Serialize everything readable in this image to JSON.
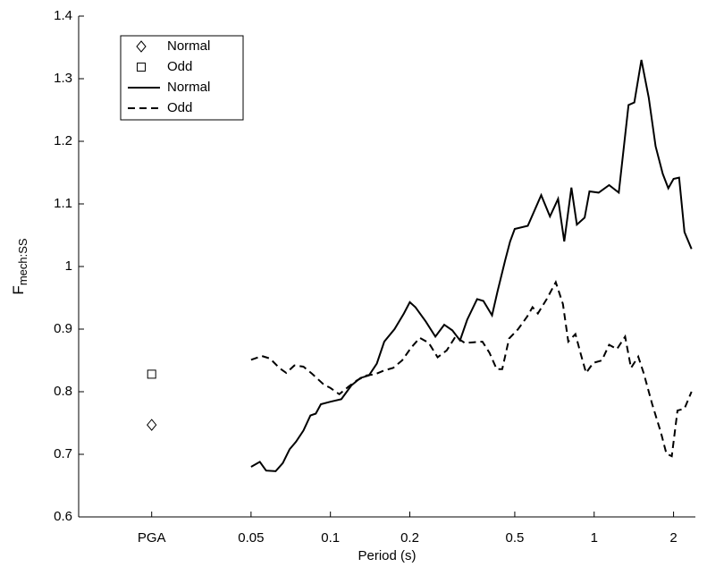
{
  "chart_data": {
    "type": "line",
    "x_label": "Period (s)",
    "y_label": "F",
    "y_label_sub": "mech:SS",
    "xscale": "log",
    "xlim": [
      0.0111,
      2.42
    ],
    "ylim": [
      0.6,
      1.4
    ],
    "xticks": [
      {
        "value": 0.021,
        "label": "PGA"
      },
      0.05,
      0.1,
      0.2,
      0.5,
      1,
      2
    ],
    "yticks": [
      0.6,
      0.7,
      0.8,
      0.9,
      1,
      1.1,
      1.2,
      1.3,
      1.4
    ],
    "legend": "top-left",
    "series": [
      {
        "name": "Normal",
        "color": "#000000",
        "style": "diamond",
        "x": [
          0.021
        ],
        "values": [
          0.747
        ]
      },
      {
        "name": "Odd",
        "color": "#000000",
        "style": "square",
        "x": [
          0.021
        ],
        "values": [
          0.828
        ]
      },
      {
        "name": "Normal",
        "color": "#000000",
        "style": "solid",
        "x": [
          0.05,
          0.054,
          0.057,
          0.062,
          0.066,
          0.07,
          0.074,
          0.079,
          0.084,
          0.088,
          0.092,
          0.1,
          0.11,
          0.12,
          0.13,
          0.14,
          0.15,
          0.16,
          0.175,
          0.19,
          0.2,
          0.21,
          0.23,
          0.25,
          0.27,
          0.29,
          0.31,
          0.33,
          0.36,
          0.38,
          0.41,
          0.43,
          0.46,
          0.48,
          0.5,
          0.56,
          0.63,
          0.68,
          0.73,
          0.77,
          0.82,
          0.86,
          0.92,
          0.96,
          1.04,
          1.14,
          1.24,
          1.35,
          1.42,
          1.51,
          1.61,
          1.71,
          1.82,
          1.91,
          2.0,
          2.1,
          2.2,
          2.34
        ],
        "values": [
          0.68,
          0.688,
          0.674,
          0.673,
          0.686,
          0.708,
          0.72,
          0.738,
          0.762,
          0.765,
          0.78,
          0.784,
          0.788,
          0.81,
          0.822,
          0.826,
          0.845,
          0.88,
          0.9,
          0.925,
          0.943,
          0.935,
          0.912,
          0.888,
          0.907,
          0.898,
          0.882,
          0.915,
          0.948,
          0.945,
          0.922,
          0.96,
          1.01,
          1.04,
          1.06,
          1.065,
          1.114,
          1.08,
          1.108,
          1.04,
          1.126,
          1.067,
          1.078,
          1.12,
          1.118,
          1.13,
          1.118,
          1.258,
          1.262,
          1.33,
          1.27,
          1.192,
          1.148,
          1.125,
          1.14,
          1.142,
          1.055,
          1.028
        ]
      },
      {
        "name": "Odd",
        "color": "#000000",
        "style": "dashed",
        "x": [
          0.05,
          0.055,
          0.059,
          0.064,
          0.068,
          0.073,
          0.079,
          0.085,
          0.094,
          0.1,
          0.108,
          0.117,
          0.126,
          0.137,
          0.148,
          0.16,
          0.173,
          0.187,
          0.202,
          0.218,
          0.236,
          0.255,
          0.276,
          0.298,
          0.323,
          0.349,
          0.377,
          0.401,
          0.427,
          0.448,
          0.476,
          0.515,
          0.557,
          0.584,
          0.612,
          0.661,
          0.715,
          0.761,
          0.798,
          0.849,
          0.89,
          0.932,
          0.992,
          1.07,
          1.14,
          1.22,
          1.31,
          1.38,
          1.47,
          1.54,
          1.66,
          1.79,
          1.88,
          1.97,
          2.07,
          2.2,
          2.34
        ],
        "values": [
          0.851,
          0.857,
          0.853,
          0.838,
          0.83,
          0.842,
          0.84,
          0.829,
          0.812,
          0.806,
          0.796,
          0.808,
          0.818,
          0.826,
          0.828,
          0.834,
          0.838,
          0.85,
          0.87,
          0.886,
          0.878,
          0.855,
          0.866,
          0.888,
          0.878,
          0.879,
          0.88,
          0.862,
          0.836,
          0.836,
          0.885,
          0.9,
          0.92,
          0.935,
          0.925,
          0.948,
          0.975,
          0.94,
          0.88,
          0.892,
          0.86,
          0.83,
          0.846,
          0.85,
          0.875,
          0.868,
          0.888,
          0.838,
          0.856,
          0.83,
          0.78,
          0.735,
          0.701,
          0.697,
          0.77,
          0.773,
          0.8
        ]
      }
    ]
  }
}
